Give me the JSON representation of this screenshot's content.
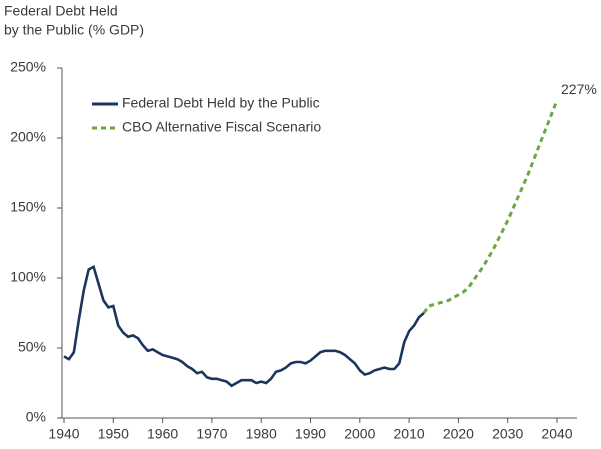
{
  "chart_data": {
    "type": "line",
    "y_label": [
      "Federal Debt Held",
      "by the Public (% GDP)"
    ],
    "series": [
      {
        "name": "Federal Debt Held by the Public",
        "color": "#1b365d",
        "dashed": false,
        "x": [
          1940,
          1941,
          1942,
          1943,
          1944,
          1945,
          1946,
          1947,
          1948,
          1949,
          1950,
          1951,
          1952,
          1953,
          1954,
          1955,
          1956,
          1957,
          1958,
          1959,
          1960,
          1961,
          1962,
          1963,
          1964,
          1965,
          1966,
          1967,
          1968,
          1969,
          1970,
          1971,
          1972,
          1973,
          1974,
          1975,
          1976,
          1977,
          1978,
          1979,
          1980,
          1981,
          1982,
          1983,
          1984,
          1985,
          1986,
          1987,
          1988,
          1989,
          1990,
          1991,
          1992,
          1993,
          1994,
          1995,
          1996,
          1997,
          1998,
          1999,
          2000,
          2001,
          2002,
          2003,
          2004,
          2005,
          2006,
          2007,
          2008,
          2009,
          2010,
          2011,
          2012,
          2013
        ],
        "values": [
          44,
          42,
          47,
          70,
          91,
          106,
          108,
          96,
          84,
          79,
          80,
          66,
          61,
          58,
          59,
          57,
          52,
          48,
          49,
          47,
          45,
          44,
          43,
          42,
          40,
          37,
          35,
          32,
          33,
          29,
          28,
          28,
          27,
          26,
          23,
          25,
          27,
          27,
          27,
          25,
          26,
          25,
          28,
          33,
          34,
          36,
          39,
          40,
          40,
          39,
          41,
          44,
          47,
          48,
          48,
          48,
          47,
          45,
          42,
          39,
          34,
          31,
          32,
          34,
          35,
          36,
          35,
          35,
          39,
          54,
          62,
          66,
          72,
          75
        ]
      },
      {
        "name": "CBO Alternative Fiscal Scenario",
        "color": "#6aa842",
        "dashed": true,
        "x": [
          2013,
          2014,
          2015,
          2016,
          2017,
          2018,
          2019,
          2020,
          2021,
          2022,
          2023,
          2024,
          2025,
          2026,
          2027,
          2028,
          2029,
          2030,
          2031,
          2032,
          2033,
          2034,
          2035,
          2036,
          2037,
          2038,
          2039,
          2040
        ],
        "values": [
          75,
          80,
          81,
          82,
          83,
          84,
          86,
          88,
          90,
          93,
          98,
          103,
          108,
          114,
          120,
          127,
          134,
          141,
          149,
          157,
          165,
          173,
          182,
          191,
          200,
          209,
          218,
          227
        ],
        "value_labels": [
          null,
          null,
          null,
          null,
          null,
          null,
          null,
          null,
          null,
          null,
          null,
          null,
          null,
          null,
          null,
          null,
          null,
          null,
          null,
          null,
          null,
          null,
          null,
          null,
          null,
          null,
          null,
          "227%"
        ]
      }
    ],
    "xlim": [
      1940,
      2040
    ],
    "xticks": [
      1940,
      1950,
      1960,
      1970,
      1980,
      1990,
      2000,
      2010,
      2020,
      2030,
      2040
    ],
    "ylim": [
      0,
      250
    ],
    "yticks": [
      {
        "value": 0,
        "label": "0%"
      },
      {
        "value": 50,
        "label": "50%"
      },
      {
        "value": 100,
        "label": "100%"
      },
      {
        "value": 150,
        "label": "150%"
      },
      {
        "value": 200,
        "label": "200%"
      },
      {
        "value": 250,
        "label": "250%"
      }
    ],
    "grid": false,
    "legend": "upper left"
  }
}
